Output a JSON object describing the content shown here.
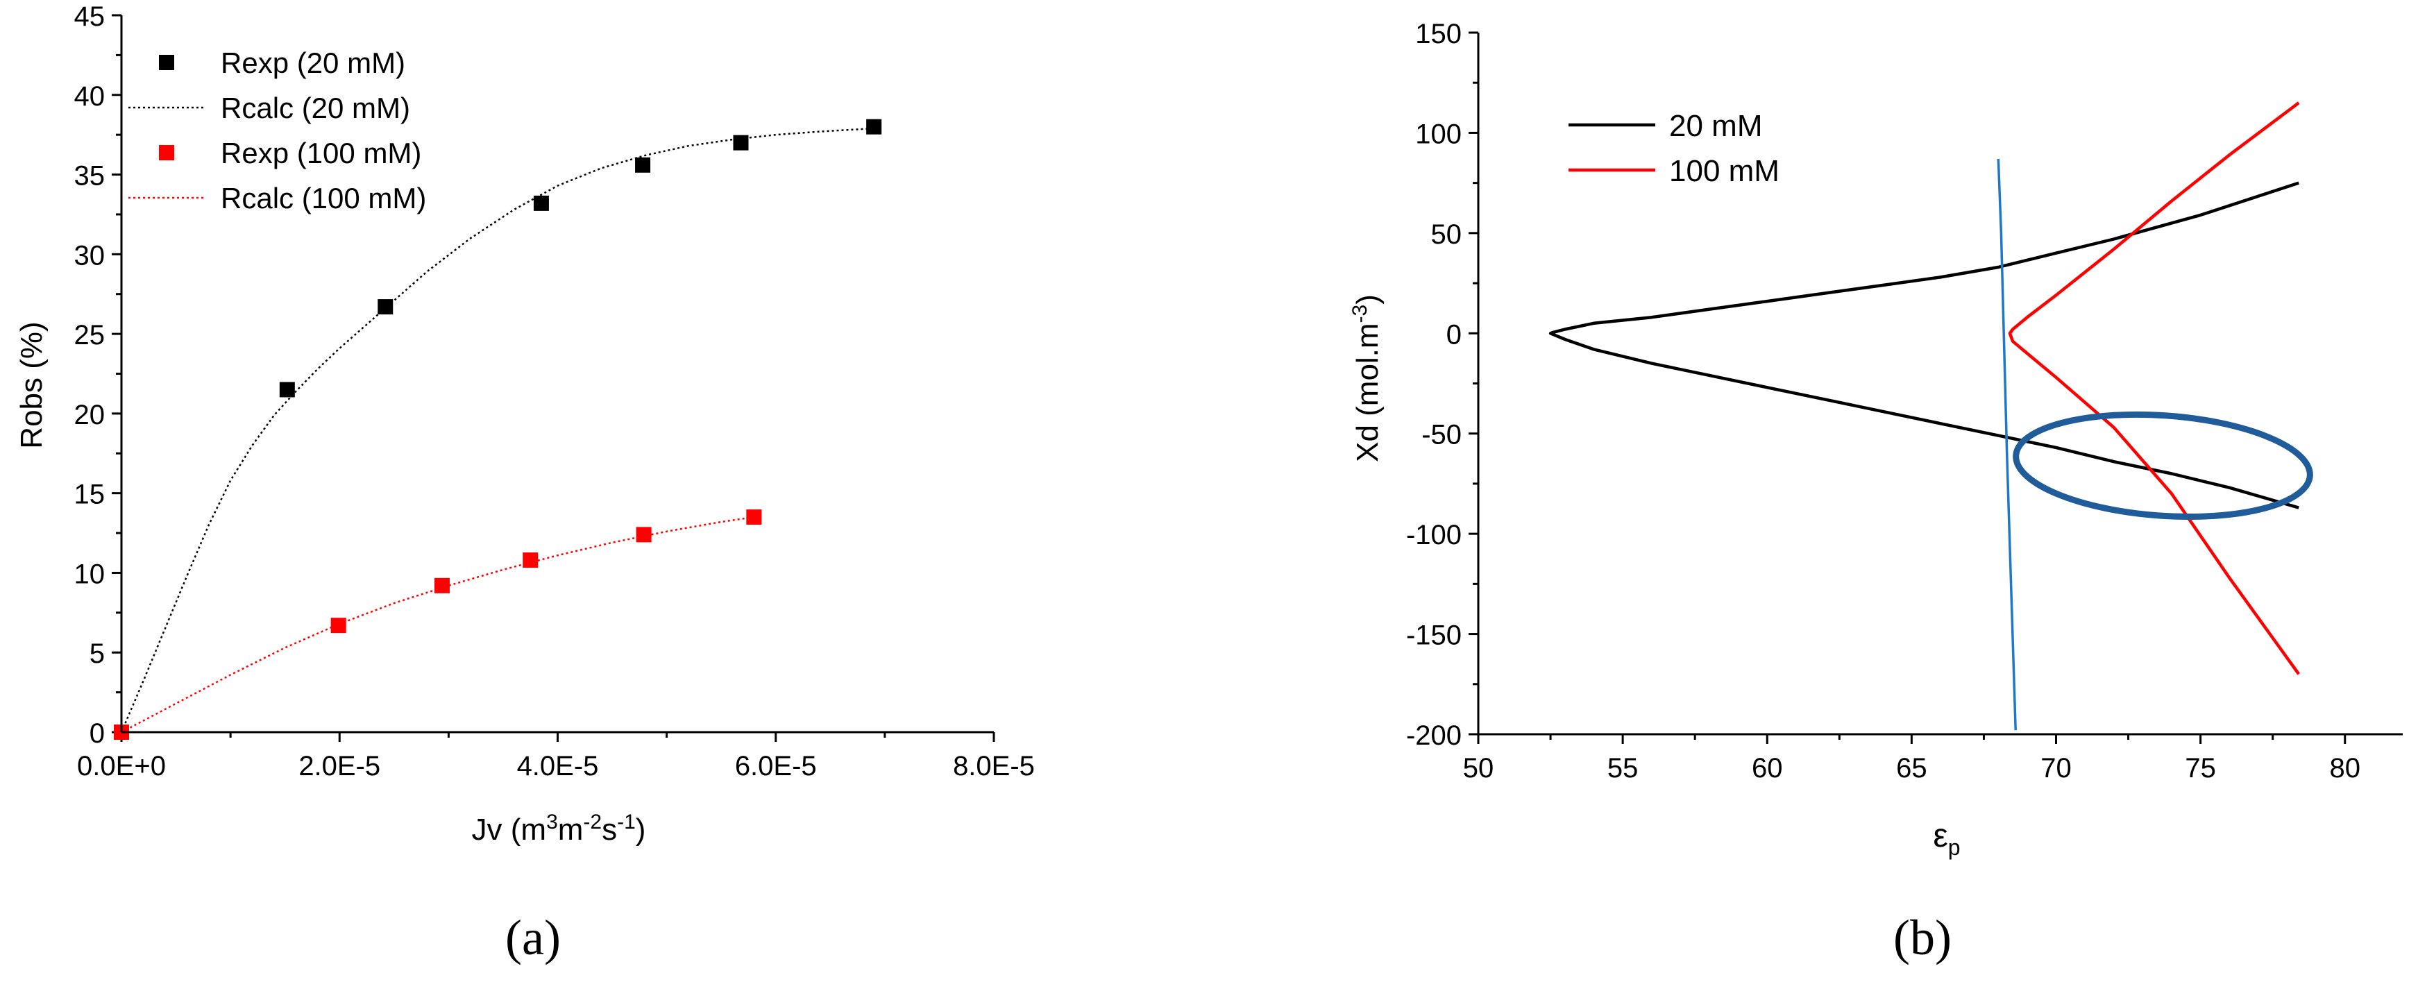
{
  "chart_data": [
    {
      "type": "scatter",
      "panel_label": "(a)",
      "xlabel_main": "Jv (m",
      "xlabel_sup1": "3",
      "xlabel_mid1": "m",
      "xlabel_sup2": "-2",
      "xlabel_mid2": "s",
      "xlabel_sup3": "-1",
      "xlabel_end": ")",
      "ylabel": "Robs (%)",
      "xlim": [
        0,
        8e-05
      ],
      "ylim": [
        0,
        45
      ],
      "xticks": [
        0,
        2e-05,
        4e-05,
        6e-05,
        8e-05
      ],
      "xtick_labels": [
        "0.0E+0",
        "2.0E-5",
        "4.0E-5",
        "6.0E-5",
        "8.0E-5"
      ],
      "yticks": [
        0,
        5,
        10,
        15,
        20,
        25,
        30,
        35,
        40,
        45
      ],
      "ytick_labels": [
        "0",
        "5",
        "10",
        "15",
        "20",
        "25",
        "30",
        "35",
        "40",
        "45"
      ],
      "legend_position": "top-left",
      "series": [
        {
          "name": "Rexp (20 mM)",
          "kind": "markers",
          "color": "#000000",
          "x": [
            0.0,
            1.52e-05,
            2.42e-05,
            3.85e-05,
            4.78e-05,
            5.68e-05,
            6.9e-05
          ],
          "y": [
            0.0,
            21.5,
            26.7,
            33.2,
            35.6,
            37.0,
            38.0
          ]
        },
        {
          "name": "Rcalc (20 mM)",
          "kind": "dotted-line",
          "color": "#000000",
          "x": [
            0.0,
            2e-06,
            4e-06,
            6e-06,
            8e-06,
            1e-05,
            1.2e-05,
            1.4e-05,
            1.6e-05,
            1.8e-05,
            2e-05,
            2.4e-05,
            2.8e-05,
            3.2e-05,
            3.6e-05,
            4e-05,
            4.4e-05,
            4.8e-05,
            5.2e-05,
            5.6e-05,
            6e-05,
            6.4e-05,
            6.9e-05
          ],
          "y": [
            0.0,
            3.2,
            6.5,
            9.8,
            13.0,
            15.8,
            18.0,
            19.9,
            21.4,
            22.8,
            24.1,
            26.5,
            28.9,
            31.0,
            32.8,
            34.3,
            35.4,
            36.2,
            36.8,
            37.2,
            37.5,
            37.7,
            37.9
          ]
        },
        {
          "name": "Rexp (100 mM)",
          "kind": "markers",
          "color": "#ff0000",
          "x": [
            0.0,
            1.99e-05,
            2.94e-05,
            3.75e-05,
            4.79e-05,
            5.8e-05
          ],
          "y": [
            0.0,
            6.7,
            9.2,
            10.8,
            12.4,
            13.5
          ]
        },
        {
          "name": "Rcalc (100 mM)",
          "kind": "dotted-line",
          "color": "#ff0000",
          "x": [
            0.0,
            5e-06,
            1e-05,
            1.5e-05,
            2e-05,
            2.5e-05,
            3e-05,
            3.5e-05,
            4e-05,
            4.5e-05,
            5e-05,
            5.5e-05,
            5.8e-05
          ],
          "y": [
            0.0,
            1.8,
            3.6,
            5.3,
            6.8,
            8.1,
            9.2,
            10.2,
            11.1,
            11.9,
            12.6,
            13.2,
            13.5
          ]
        }
      ]
    },
    {
      "type": "line",
      "panel_label": "(b)",
      "xlabel_main": "ε",
      "xlabel_sub": "p",
      "ylabel_main": "Xd (mol.m",
      "ylabel_sup": "-3",
      "ylabel_end": ")",
      "xlim": [
        50,
        82
      ],
      "ylim": [
        -200,
        150
      ],
      "xticks": [
        50,
        55,
        60,
        65,
        70,
        75,
        80
      ],
      "xtick_labels": [
        "50",
        "55",
        "60",
        "65",
        "70",
        "75",
        "80"
      ],
      "yticks": [
        -200,
        -150,
        -100,
        -50,
        0,
        50,
        100,
        150
      ],
      "ytick_labels": [
        "-200",
        "-150",
        "-100",
        "-50",
        "0",
        "50",
        "100",
        "150"
      ],
      "legend_position": "top-left",
      "series": [
        {
          "name": "20 mM",
          "color": "#000000",
          "x": [
            78.4,
            75,
            72,
            70,
            68,
            66,
            64,
            62,
            60,
            58,
            56,
            54,
            53,
            52.6,
            52.5,
            53,
            54,
            56,
            58,
            60,
            62,
            64,
            66,
            68,
            70,
            72,
            74,
            76,
            78.4
          ],
          "y": [
            75,
            59,
            47,
            40,
            33,
            28,
            24,
            20,
            16,
            12,
            8,
            5,
            2,
            0.5,
            0,
            -3,
            -8,
            -15,
            -21,
            -27,
            -33,
            -39,
            -45,
            -51,
            -57,
            -64,
            -70,
            -77,
            -87
          ]
        },
        {
          "name": "100 mM",
          "color": "#ff0000",
          "x": [
            78.4,
            76,
            74,
            72,
            70,
            69,
            68.5,
            68.4,
            68.5,
            69,
            70,
            72,
            74,
            76,
            78.4
          ],
          "y": [
            115,
            89,
            66,
            42,
            19,
            8,
            2,
            0,
            -4,
            -10,
            -22,
            -47,
            -80,
            -122,
            -170
          ]
        },
        {
          "name": "",
          "color": "#1f77c8",
          "x": [
            68.0,
            68.1,
            68.3,
            68.6
          ],
          "y": [
            87,
            50,
            -60,
            -198
          ]
        }
      ],
      "annotation_ellipse": {
        "color": "#1f5c99",
        "center_x": 73.7,
        "center_y": -66,
        "radius_x": 5.1,
        "radius_y": 25,
        "rotation_deg": 4
      }
    }
  ]
}
